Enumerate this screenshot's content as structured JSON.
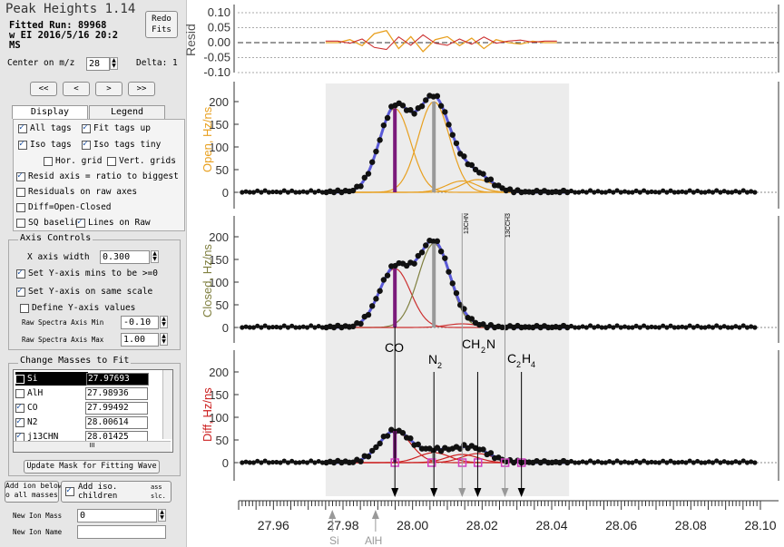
{
  "window": {
    "title": "Peak Heights 1.14",
    "run_label": "Fitted Run: 89968",
    "run_line2": "w  EI  2016/5/16 20:2",
    "run_line3": "MS",
    "redo_btn": "Redo\nFits"
  },
  "center": {
    "label": "Center on m/z",
    "value": "28",
    "delta_label": "Delta: 1"
  },
  "nav": [
    "<<",
    "<",
    ">",
    ">>"
  ],
  "tabs": [
    "Display Tweaks",
    "Legend"
  ],
  "tweaks": [
    {
      "label": "All tags",
      "checked": true
    },
    {
      "label": "Fit tags up",
      "checked": true
    },
    {
      "label": "Iso tags",
      "checked": true
    },
    {
      "label": "Iso tags tiny",
      "checked": true
    },
    {
      "label": "Hor. grid",
      "checked": false
    },
    {
      "label": "Vert. grids",
      "checked": false
    },
    {
      "label": "Resid axis = ratio to biggest",
      "checked": true
    },
    {
      "label": "Residuals on raw axes",
      "checked": false
    },
    {
      "label": "Diff=Open-Closed",
      "checked": false
    },
    {
      "label": "SQ baselin",
      "checked": false
    },
    {
      "label": "Lines on Raw",
      "checked": true
    }
  ],
  "axis_controls": {
    "title": "Axis Controls",
    "x_width_label": "X axis width",
    "x_width_value": "0.300",
    "set_ymin": "Set Y-axis mins to be >=0",
    "same_scale": "Set Y-axis on same scale",
    "define_y": "Define Y-axis values",
    "raw_min_label": "Raw Spectra Axis Min",
    "raw_min_value": "-0.10",
    "raw_max_label": "Raw Spectra Axis Max",
    "raw_max_value": "1.00"
  },
  "masses": {
    "title": "Change Masses to Fit",
    "rows": [
      {
        "name": "Si",
        "mass": "27.97693",
        "checked": false,
        "selected": true
      },
      {
        "name": "AlH",
        "mass": "27.98936",
        "checked": false,
        "selected": false
      },
      {
        "name": "CO",
        "mass": "27.99492",
        "checked": true,
        "selected": false
      },
      {
        "name": "N2",
        "mass": "28.00614",
        "checked": true,
        "selected": false
      },
      {
        "name": "j13CHN",
        "mass": "28.01425",
        "checked": true,
        "selected": false
      }
    ],
    "scroll_label": "III"
  },
  "buttons": {
    "update_mask": "Update Mask for Fitting Wave",
    "add_ion_below": "Add ion below\no all masses lis",
    "add_iso": "Add iso.",
    "add_iso_sub": "children",
    "add_iso_tail1": "ass",
    "add_iso_tail2": "slc."
  },
  "new_ion": {
    "mass_label": "New Ion Mass",
    "mass_value": "0",
    "name_label": "New Ion Name",
    "name_value": ""
  },
  "plot": {
    "resid_label": "Resid",
    "resid_ticks": [
      "0.10",
      "0.05",
      "0.00",
      "-0.05",
      "-0.10"
    ],
    "y_ticks": [
      "200",
      "150",
      "100",
      "50",
      "0"
    ],
    "open_label": "Open, Hz/ns",
    "closed_label": "Closed, Hz/ns",
    "diff_label": "Diff, Hz/ns",
    "x_ticks": [
      "27.96",
      "27.98",
      "28.00",
      "28.02",
      "28.04",
      "28.06",
      "28.08",
      "28.10"
    ],
    "peak_labels": [
      "CO",
      "N",
      "2",
      "CH",
      "2",
      "N",
      "C",
      "2",
      "H",
      "4"
    ],
    "tiny_tags": [
      "13CHN",
      "13CCH3"
    ],
    "bottom_tags": [
      "Si",
      "AlH"
    ],
    "colors": {
      "fit": "#5a5ad8",
      "open": "#e8a020",
      "closed": "#cc3030",
      "closed_n2": "#808040",
      "diff": "#cc2020",
      "co_bar": "#7a1a7a",
      "shade": "#ececec"
    }
  }
}
